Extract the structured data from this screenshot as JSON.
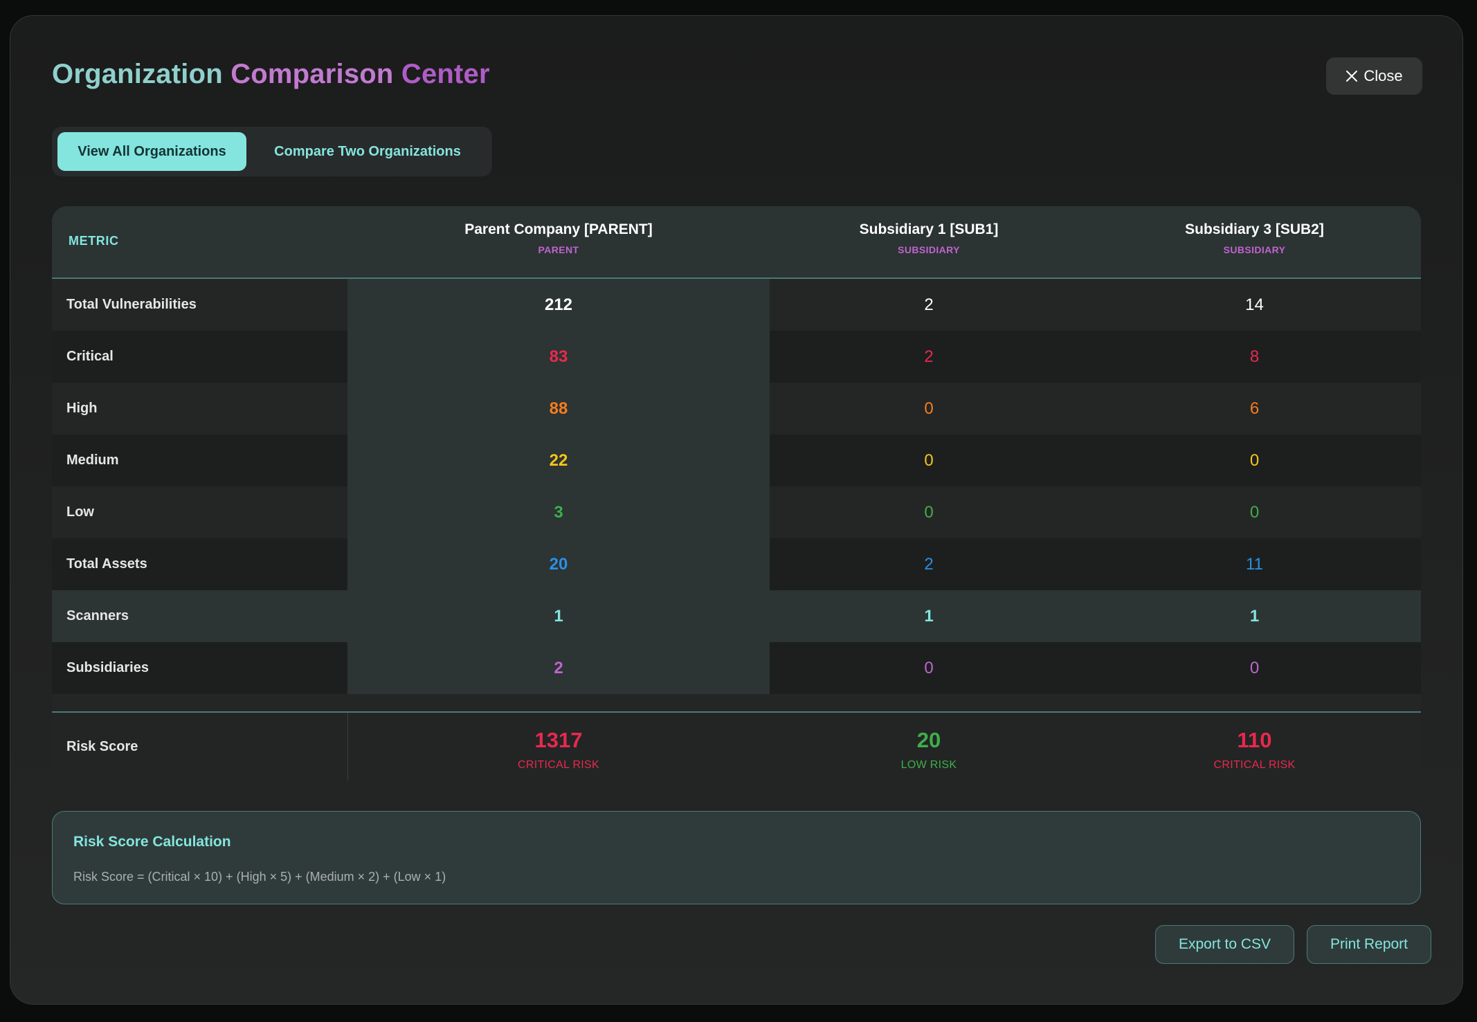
{
  "header": {
    "title_part1": "Organization",
    "title_part2": "Comparison",
    "title_part3": "Center",
    "close_label": "Close"
  },
  "tabs": [
    {
      "label": "View All Organizations",
      "active": true
    },
    {
      "label": "Compare Two Organizations",
      "active": false
    }
  ],
  "table": {
    "metric_header": "METRIC",
    "orgs": [
      {
        "name": "Parent Company [PARENT]",
        "type": "PARENT"
      },
      {
        "name": "Subsidiary 1 [SUB1]",
        "type": "SUBSIDIARY"
      },
      {
        "name": "Subsidiary 3 [SUB2]",
        "type": "SUBSIDIARY"
      }
    ],
    "rows": [
      {
        "label": "Total Vulnerabilities",
        "values": [
          "212",
          "2",
          "14"
        ],
        "color": "#ffffff"
      },
      {
        "label": "Critical",
        "values": [
          "83",
          "2",
          "8"
        ],
        "color": "#e8294d"
      },
      {
        "label": "High",
        "values": [
          "88",
          "0",
          "6"
        ],
        "color": "#f57c1f"
      },
      {
        "label": "Medium",
        "values": [
          "22",
          "0",
          "0"
        ],
        "color": "#f5c518"
      },
      {
        "label": "Low",
        "values": [
          "3",
          "0",
          "0"
        ],
        "color": "#3fae49"
      },
      {
        "label": "Total Assets",
        "values": [
          "20",
          "2",
          "11"
        ],
        "color": "#2b8fe3"
      },
      {
        "label": "Scanners",
        "values": [
          "1",
          "1",
          "1"
        ],
        "color": "#84e5df"
      },
      {
        "label": "Subsidiaries",
        "values": [
          "2",
          "0",
          "0"
        ],
        "color": "#c064cf"
      }
    ],
    "risk": {
      "label": "Risk Score",
      "values": [
        {
          "score": "1317",
          "level": "CRITICAL RISK",
          "color": "#e8294d"
        },
        {
          "score": "20",
          "level": "LOW RISK",
          "color": "#3fae49"
        },
        {
          "score": "110",
          "level": "CRITICAL RISK",
          "color": "#e8294d"
        }
      ]
    }
  },
  "calc": {
    "title": "Risk Score Calculation",
    "formula": "Risk Score = (Critical × 10) + (High × 5) + (Medium × 2) + (Low × 1)"
  },
  "footer": {
    "export_label": "Export to CSV",
    "print_label": "Print Report"
  }
}
